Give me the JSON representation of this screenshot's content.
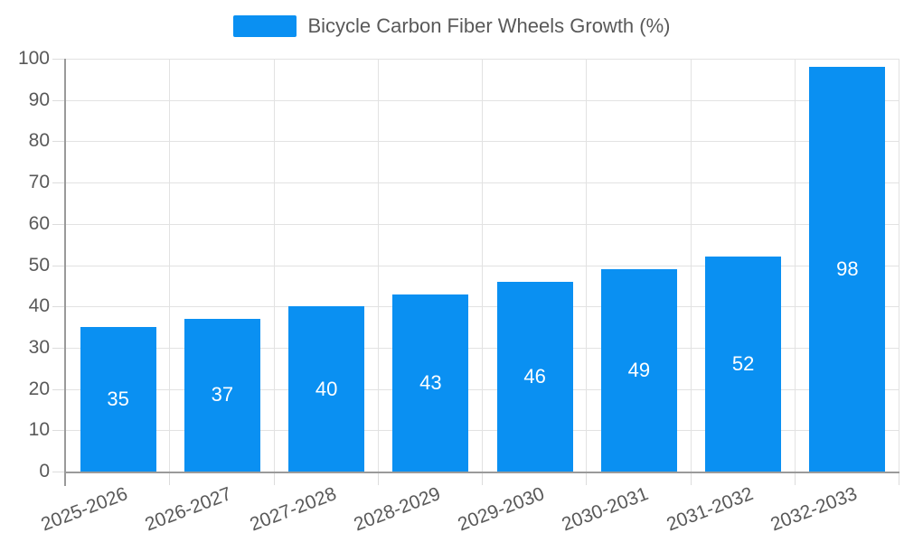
{
  "legend": {
    "label": "Bicycle Carbon Fiber Wheels Growth (%)"
  },
  "chart_data": {
    "type": "bar",
    "title": "Bicycle Carbon Fiber Wheels Growth (%)",
    "categories": [
      "2025-2026",
      "2026-2027",
      "2027-2028",
      "2028-2029",
      "2029-2030",
      "2030-2031",
      "2031-2032",
      "2032-2033"
    ],
    "values": [
      35,
      37,
      40,
      43,
      46,
      49,
      52,
      98
    ],
    "xlabel": "",
    "ylabel": "",
    "ylim": [
      0,
      100
    ],
    "ytick_interval": 10,
    "ytick_labels": [
      "0",
      "10",
      "20",
      "30",
      "40",
      "50",
      "60",
      "70",
      "80",
      "90",
      "100"
    ],
    "grid": true,
    "legend_position": "top-center",
    "bar_color": "#0a90f2",
    "value_label_color": "#ffffff",
    "axis_line_color": "#9a9a9a",
    "grid_color": "#e2e2e2",
    "text_color": "#595959",
    "background_color": "#ffffff"
  }
}
